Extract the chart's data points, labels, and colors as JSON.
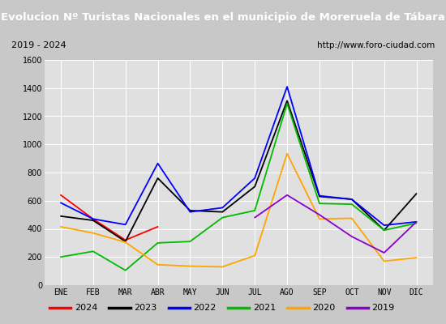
{
  "title": "Evolucion Nº Turistas Nacionales en el municipio de Moreruela de Tábara",
  "subtitle_left": "2019 - 2024",
  "subtitle_right": "http://www.foro-ciudad.com",
  "title_bg_color": "#4472c4",
  "title_text_color": "#ffffff",
  "plot_bg_color": "#e0e0e0",
  "grid_color": "#ffffff",
  "outer_bg_color": "#c8c8c8",
  "months": [
    "ENE",
    "FEB",
    "MAR",
    "ABR",
    "MAY",
    "JUN",
    "JUL",
    "AGO",
    "SEP",
    "OCT",
    "NOV",
    "DIC"
  ],
  "ylim": [
    0,
    1600
  ],
  "yticks": [
    0,
    200,
    400,
    600,
    800,
    1000,
    1200,
    1400,
    1600
  ],
  "series": {
    "2024": {
      "color": "#ff0000",
      "data": [
        640,
        470,
        320,
        415,
        null,
        null,
        null,
        null,
        null,
        null,
        null,
        null
      ]
    },
    "2023": {
      "color": "#000000",
      "data": [
        490,
        460,
        310,
        760,
        530,
        520,
        700,
        1310,
        630,
        610,
        390,
        650
      ]
    },
    "2022": {
      "color": "#0000ff",
      "data": [
        585,
        470,
        430,
        865,
        520,
        550,
        760,
        1410,
        635,
        610,
        425,
        450
      ]
    },
    "2021": {
      "color": "#00bb00",
      "data": [
        200,
        240,
        105,
        300,
        310,
        480,
        530,
        1290,
        580,
        575,
        390,
        440
      ]
    },
    "2020": {
      "color": "#ffa500",
      "data": [
        415,
        370,
        305,
        145,
        135,
        130,
        210,
        935,
        470,
        475,
        170,
        195
      ]
    },
    "2019": {
      "color": "#8b00cc",
      "data": [
        null,
        null,
        null,
        null,
        null,
        null,
        480,
        640,
        500,
        345,
        230,
        450
      ]
    }
  },
  "legend_order": [
    "2024",
    "2023",
    "2022",
    "2021",
    "2020",
    "2019"
  ]
}
